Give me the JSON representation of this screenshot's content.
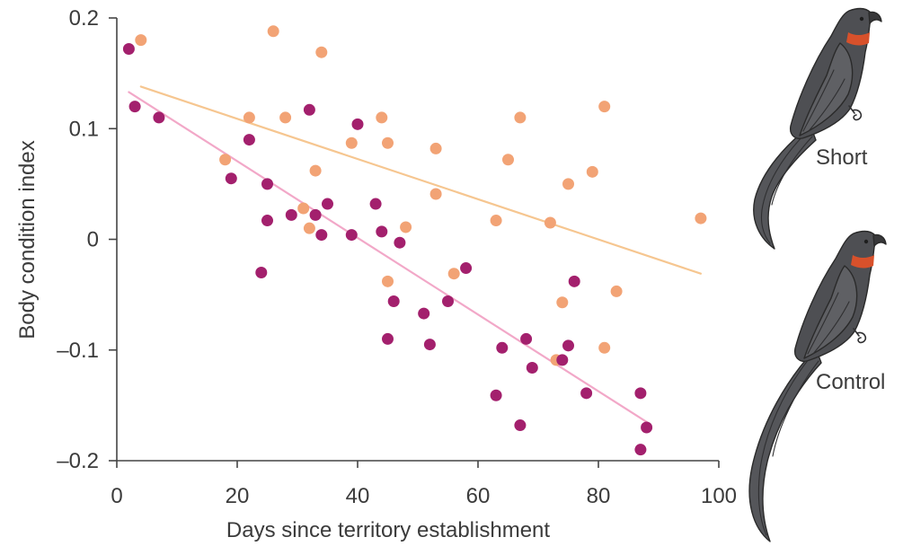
{
  "chart_data": {
    "type": "scatter",
    "xlabel": "Days since territory establishment",
    "ylabel": "Body condition index",
    "xlim": [
      0,
      100
    ],
    "ylim": [
      -0.2,
      0.2
    ],
    "x_ticks": [
      0,
      20,
      40,
      60,
      80,
      100
    ],
    "x_tick_labels": [
      "0",
      "20",
      "40",
      "60",
      "80",
      "100"
    ],
    "y_ticks": [
      0.2,
      0.1,
      0,
      -0.1,
      -0.2
    ],
    "y_tick_labels": [
      "0.2",
      "0.1",
      "0",
      "–0.1",
      "–0.2"
    ],
    "grid": false,
    "legend_position": "right",
    "series": [
      {
        "name": "Short",
        "color": "#f2a375",
        "line_color": "#f6c690",
        "icon": "short-tail-bird-icon",
        "x": [
          4,
          26,
          34,
          22,
          28,
          44,
          18,
          33,
          39,
          45,
          53,
          53,
          65,
          67,
          81,
          79,
          75,
          72,
          63,
          97,
          31,
          32,
          48,
          45,
          56,
          74,
          83,
          73,
          81
        ],
        "y": [
          0.18,
          0.188,
          0.169,
          0.11,
          0.11,
          0.11,
          0.072,
          0.062,
          0.087,
          0.087,
          0.082,
          0.041,
          0.072,
          0.11,
          0.12,
          0.061,
          0.05,
          0.015,
          0.017,
          0.019,
          0.028,
          0.01,
          0.011,
          -0.038,
          -0.031,
          -0.057,
          -0.047,
          -0.109,
          -0.098
        ],
        "trend_line": {
          "x": [
            4,
            97
          ],
          "y": [
            0.138,
            -0.031
          ]
        }
      },
      {
        "name": "Control",
        "color": "#a3206d",
        "line_color": "#f2a8c8",
        "icon": "long-tail-bird-icon",
        "x": [
          2,
          3,
          7,
          22,
          19,
          25,
          32,
          40,
          25,
          29,
          33,
          35,
          34,
          39,
          43,
          44,
          47,
          24,
          58,
          46,
          55,
          51,
          45,
          52,
          64,
          68,
          69,
          75,
          76,
          74,
          63,
          78,
          67,
          87,
          88,
          87
        ],
        "y": [
          0.172,
          0.12,
          0.11,
          0.09,
          0.055,
          0.05,
          0.117,
          0.104,
          0.017,
          0.022,
          0.022,
          0.032,
          0.004,
          0.004,
          0.032,
          0.007,
          -0.003,
          -0.03,
          -0.026,
          -0.056,
          -0.056,
          -0.067,
          -0.09,
          -0.095,
          -0.098,
          -0.09,
          -0.116,
          -0.096,
          -0.038,
          -0.109,
          -0.141,
          -0.139,
          -0.168,
          -0.139,
          -0.17,
          -0.19
        ],
        "trend_line": {
          "x": [
            2,
            88
          ],
          "y": [
            0.133,
            -0.165
          ]
        }
      }
    ]
  },
  "colors": {
    "axis": "#444444",
    "text": "#3b3b3b",
    "bird_body": "#4e4f53",
    "bird_wing": "#5f6064",
    "bird_tail": "#55565a",
    "bird_beak": "#38383a",
    "bird_eye": "#1e1e1e",
    "collar": "#d8512b"
  }
}
